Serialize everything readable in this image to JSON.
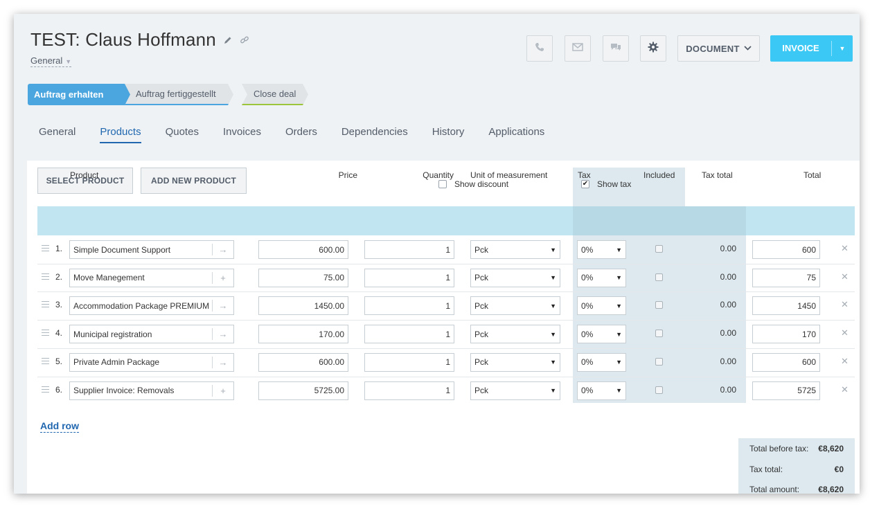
{
  "header": {
    "title": "TEST: Claus Hoffmann",
    "subtitle": "General",
    "document_label": "DOCUMENT",
    "invoice_label": "INVOICE"
  },
  "stages": [
    {
      "label": "Auftrag erhalten"
    },
    {
      "label": "Auftrag fertiggestellt"
    },
    {
      "label": "Close deal"
    }
  ],
  "tabs": [
    "General",
    "Products",
    "Quotes",
    "Invoices",
    "Orders",
    "Dependencies",
    "History",
    "Applications"
  ],
  "toolbar": {
    "select_product": "SELECT PRODUCT",
    "add_new_product": "ADD NEW PRODUCT",
    "show_discount": "Show discount",
    "show_discount_checked": false,
    "show_tax": "Show tax",
    "show_tax_checked": true
  },
  "table": {
    "columns": [
      "Product",
      "Price",
      "Quantity",
      "Unit of measurement",
      "Tax",
      "Included",
      "Tax total",
      "Total"
    ],
    "rows": [
      {
        "num": "1.",
        "product": "Simple Document Support",
        "price": "600.00",
        "qty": "1",
        "unit": "Pck",
        "tax": "0%",
        "tax_total": "0.00",
        "total": "600",
        "action_icon": "arrow-right-icon"
      },
      {
        "num": "2.",
        "product": "Move Manegement",
        "price": "75.00",
        "qty": "1",
        "unit": "Pck",
        "tax": "0%",
        "tax_total": "0.00",
        "total": "75",
        "action_icon": "plus-icon"
      },
      {
        "num": "3.",
        "product": "Accommodation Package PREMIUM",
        "price": "1450.00",
        "qty": "1",
        "unit": "Pck",
        "tax": "0%",
        "tax_total": "0.00",
        "total": "1450",
        "action_icon": "arrow-right-icon"
      },
      {
        "num": "4.",
        "product": "Municipal registration",
        "price": "170.00",
        "qty": "1",
        "unit": "Pck",
        "tax": "0%",
        "tax_total": "0.00",
        "total": "170",
        "action_icon": "arrow-right-icon"
      },
      {
        "num": "5.",
        "product": "Private Admin Package",
        "price": "600.00",
        "qty": "1",
        "unit": "Pck",
        "tax": "0%",
        "tax_total": "0.00",
        "total": "600",
        "action_icon": "arrow-right-icon"
      },
      {
        "num": "6.",
        "product": "Supplier Invoice: Removals",
        "price": "5725.00",
        "qty": "1",
        "unit": "Pck",
        "tax": "0%",
        "tax_total": "0.00",
        "total": "5725",
        "action_icon": "plus-icon"
      }
    ]
  },
  "add_row": "Add row",
  "totals": {
    "before_tax_label": "Total before tax:",
    "before_tax": "€8,620",
    "tax_label": "Tax total:",
    "tax": "€0",
    "amount_label": "Total amount:",
    "amount": "€8,620"
  },
  "colors": {
    "accent": "#3bc8f5",
    "stage_active": "#4ba5de",
    "link": "#2067b0",
    "table_header": "#c1e5f1"
  }
}
